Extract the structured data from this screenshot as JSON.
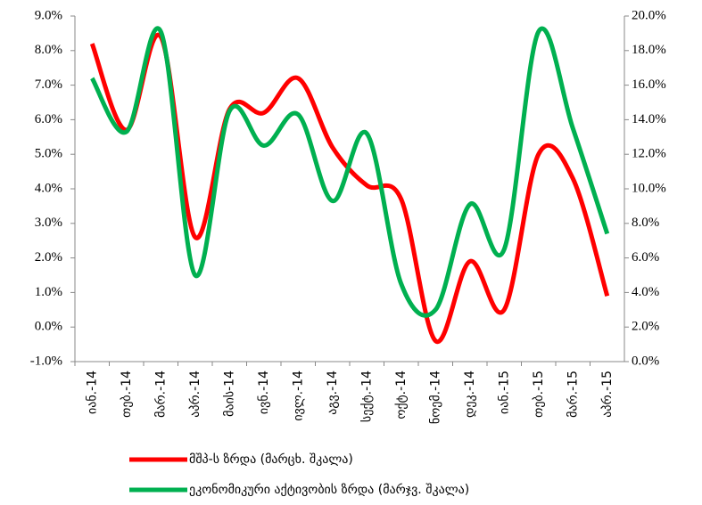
{
  "chart_data": {
    "type": "line",
    "categories": [
      "იან.-14",
      "თებ.-14",
      "მარ.-14",
      "აპრ.-14",
      "მაის-14",
      "ივნ.-14",
      "ივლ.-14",
      "აგვ.-14",
      "სექტ.-14",
      "ოქტ.-14",
      "ნოემ.-14",
      "დეკ.-14",
      "იან.-15",
      "თებ.-15",
      "მარ.-15",
      "აპრ.-15"
    ],
    "series": [
      {
        "name": "მშპ-ს ზრდა (მარცხ. შკალა)",
        "color": "#ff0000",
        "axis": "y",
        "values": [
          8.2,
          5.7,
          8.4,
          2.6,
          6.3,
          6.2,
          7.2,
          5.2,
          4.1,
          3.7,
          -0.4,
          1.9,
          0.5,
          5.0,
          4.3,
          0.9
        ]
      },
      {
        "name": "ეკონომიკური აქტივობის ზრდა (მარჯვ. შკალა)",
        "color": "#00b050",
        "axis": "y2",
        "values": [
          16.4,
          13.3,
          19.1,
          5.0,
          14.5,
          12.5,
          14.3,
          9.3,
          13.2,
          4.5,
          3.0,
          9.1,
          6.5,
          19.1,
          13.5,
          7.4
        ]
      }
    ],
    "ylim": [
      -1,
      9
    ],
    "yticks": [
      {
        "value": -1,
        "label": "-1.0%"
      },
      {
        "value": 0,
        "label": "0.0%"
      },
      {
        "value": 1,
        "label": "1.0%"
      },
      {
        "value": 2,
        "label": "2.0%"
      },
      {
        "value": 3,
        "label": "3.0%"
      },
      {
        "value": 4,
        "label": "4.0%"
      },
      {
        "value": 5,
        "label": "5.0%"
      },
      {
        "value": 6,
        "label": "6.0%"
      },
      {
        "value": 7,
        "label": "7.0%"
      },
      {
        "value": 8,
        "label": "8.0%"
      },
      {
        "value": 9,
        "label": "9.0%"
      }
    ],
    "y2lim": [
      0,
      20
    ],
    "y2ticks": [
      {
        "value": 0,
        "label": "0.0%"
      },
      {
        "value": 2,
        "label": "2.0%"
      },
      {
        "value": 4,
        "label": "4.0%"
      },
      {
        "value": 6,
        "label": "6.0%"
      },
      {
        "value": 8,
        "label": "8.0%"
      },
      {
        "value": 10,
        "label": "10.0%"
      },
      {
        "value": 12,
        "label": "12.0%"
      },
      {
        "value": 14,
        "label": "14.0%"
      },
      {
        "value": 16,
        "label": "16.0%"
      },
      {
        "value": 18,
        "label": "18.0%"
      },
      {
        "value": 20,
        "label": "20.0%"
      }
    ]
  }
}
